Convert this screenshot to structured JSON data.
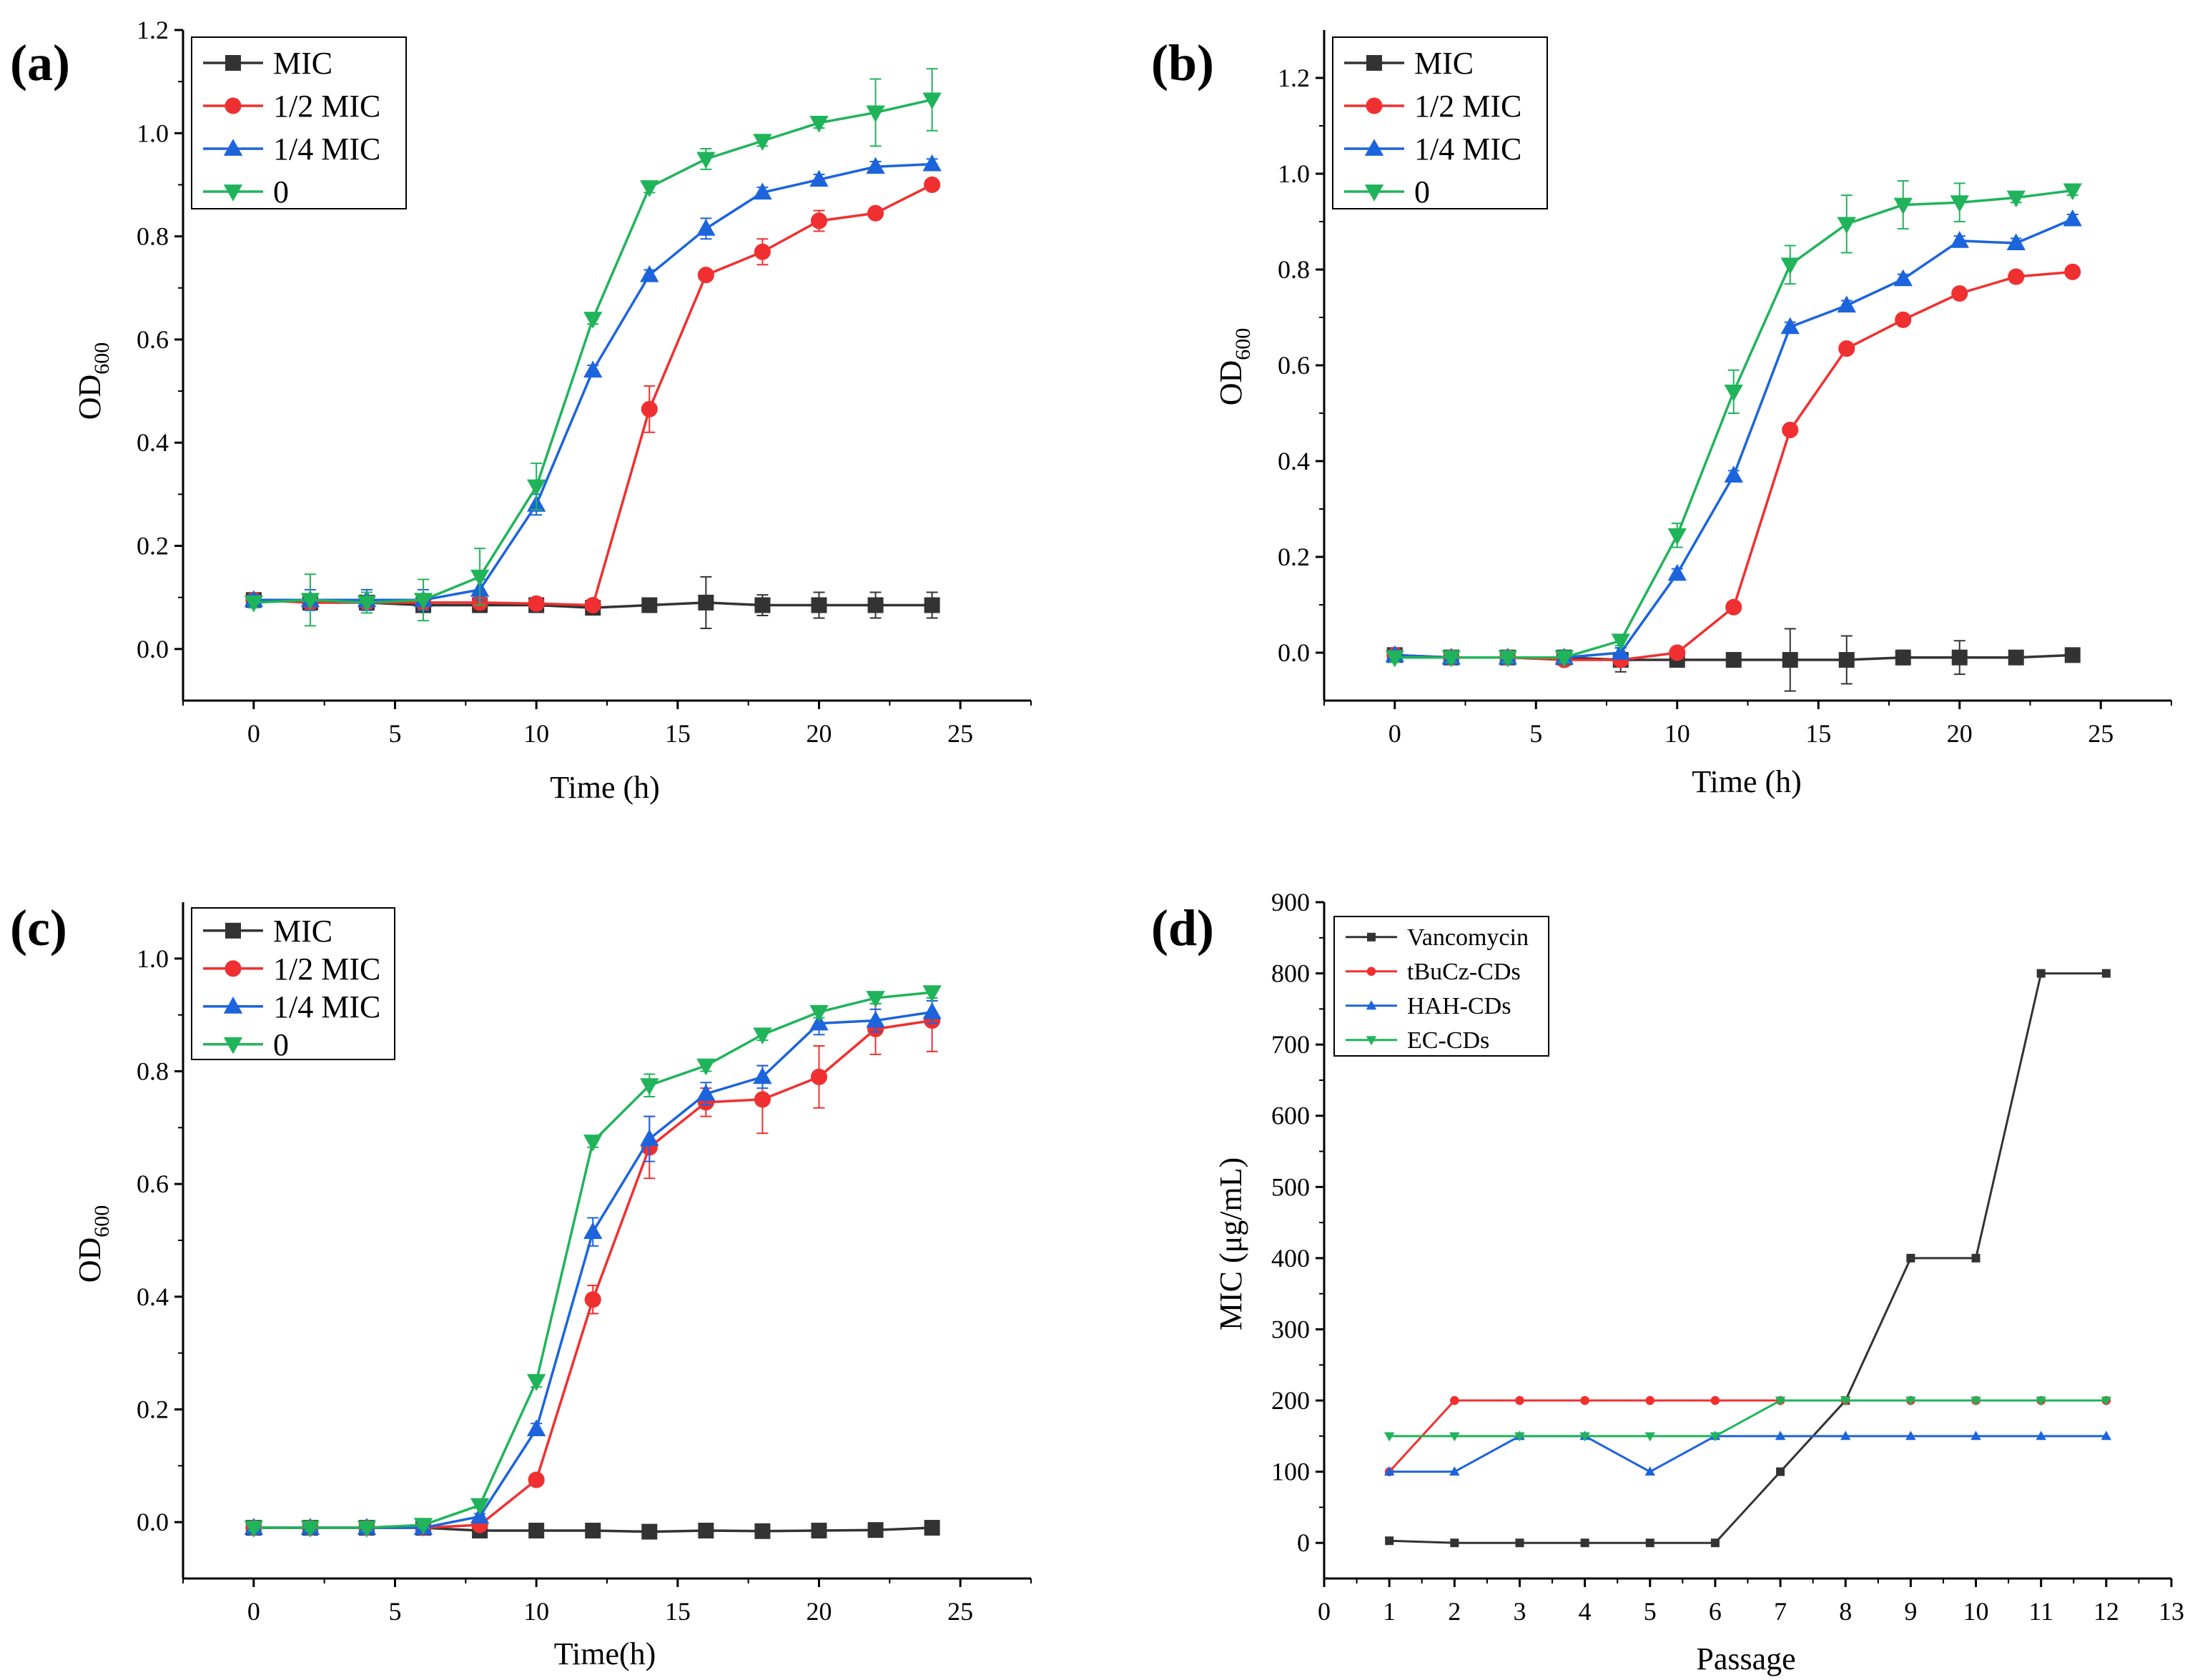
{
  "figure": {
    "colors": {
      "MIC": "#333333",
      "half_MIC": "#f03030",
      "quarter_MIC": "#1c64dc",
      "zero": "#20b45a",
      "vancomycin": "#333333",
      "tbucz": "#f03030",
      "hah": "#1c64dc",
      "ec": "#20b45a"
    },
    "markers": {
      "MIC": "square",
      "half_MIC": "circle",
      "quarter_MIC": "triangle-up",
      "zero": "triangle-down"
    }
  },
  "chart_data": [
    {
      "id": "a",
      "panel_label": "(a)",
      "type": "line",
      "xlabel": "Time (h)",
      "ylabel_main": "OD",
      "ylabel_sub": "600",
      "xlim": [
        -2.5,
        27.5
      ],
      "ylim": [
        -0.1,
        1.2
      ],
      "xticks": [
        0,
        5,
        10,
        15,
        20,
        25
      ],
      "yticks": [
        0.0,
        0.2,
        0.4,
        0.6,
        0.8,
        1.0,
        1.2
      ],
      "ytick_labels": [
        "0.0",
        "0.2",
        "0.4",
        "0.6",
        "0.8",
        "1.0",
        "1.2"
      ],
      "xtick_labels": [
        "0",
        "5",
        "10",
        "15",
        "20",
        "25"
      ],
      "legend_position": "top-left",
      "x": [
        0,
        2,
        4,
        6,
        8,
        10,
        12,
        14,
        16,
        18,
        20,
        22,
        24
      ],
      "series": [
        {
          "key": "MIC",
          "name": "MIC",
          "values": [
            0.095,
            0.09,
            0.09,
            0.085,
            0.085,
            0.085,
            0.08,
            0.085,
            0.09,
            0.085,
            0.085,
            0.085,
            0.085
          ],
          "errors": [
            0.01,
            0.01,
            0.01,
            0.01,
            0.01,
            0.01,
            0.01,
            0.01,
            0.05,
            0.02,
            0.025,
            0.025,
            0.025
          ]
        },
        {
          "key": "half_MIC",
          "name": "1/2 MIC",
          "values": [
            0.095,
            0.09,
            0.09,
            0.09,
            0.09,
            0.088,
            0.085,
            0.465,
            0.725,
            0.77,
            0.83,
            0.845,
            0.9
          ],
          "errors": [
            0.01,
            0.01,
            0.01,
            0.01,
            0.01,
            0.01,
            0.01,
            0.045,
            0.01,
            0.025,
            0.02,
            0.01,
            0.01
          ]
        },
        {
          "key": "quarter_MIC",
          "name": "1/4 MIC",
          "values": [
            0.095,
            0.095,
            0.095,
            0.095,
            0.115,
            0.28,
            0.54,
            0.725,
            0.815,
            0.885,
            0.91,
            0.935,
            0.94
          ],
          "errors": [
            0.01,
            0.02,
            0.02,
            0.02,
            0.02,
            0.02,
            0.01,
            0.01,
            0.02,
            0.01,
            0.01,
            0.01,
            0.01
          ]
        },
        {
          "key": "zero",
          "name": "0",
          "values": [
            0.09,
            0.095,
            0.09,
            0.095,
            0.14,
            0.315,
            0.64,
            0.895,
            0.95,
            0.985,
            1.02,
            1.04,
            1.065
          ],
          "errors": [
            0.01,
            0.05,
            0.02,
            0.04,
            0.055,
            0.045,
            0.01,
            0.01,
            0.02,
            0.01,
            0.01,
            0.065,
            0.06
          ]
        }
      ]
    },
    {
      "id": "b",
      "panel_label": "(b)",
      "type": "line",
      "xlabel": "Time (h)",
      "ylabel_main": "OD",
      "ylabel_sub": "600",
      "xlim": [
        -2.5,
        27.5
      ],
      "ylim": [
        -0.1,
        1.3
      ],
      "xticks": [
        0,
        5,
        10,
        15,
        20,
        25
      ],
      "yticks": [
        0.0,
        0.2,
        0.4,
        0.6,
        0.8,
        1.0,
        1.2
      ],
      "ytick_labels": [
        "0.0",
        "0.2",
        "0.4",
        "0.6",
        "0.8",
        "1.0",
        "1.2"
      ],
      "xtick_labels": [
        "0",
        "5",
        "10",
        "15",
        "20",
        "25"
      ],
      "legend_position": "top-left",
      "x": [
        0,
        2,
        4,
        6,
        8,
        10,
        12,
        14,
        16,
        18,
        20,
        22,
        24
      ],
      "series": [
        {
          "key": "MIC",
          "name": "MIC",
          "values": [
            -0.005,
            -0.01,
            -0.01,
            -0.01,
            -0.015,
            -0.015,
            -0.015,
            -0.015,
            -0.015,
            -0.01,
            -0.01,
            -0.01,
            -0.005
          ],
          "errors": [
            0.01,
            0.01,
            0.01,
            0.01,
            0.025,
            0.01,
            0.01,
            0.065,
            0.05,
            0.015,
            0.035,
            0.01,
            0.01
          ]
        },
        {
          "key": "half_MIC",
          "name": "1/2 MIC",
          "values": [
            -0.005,
            -0.01,
            -0.01,
            -0.015,
            -0.015,
            0.0,
            0.095,
            0.465,
            0.635,
            0.695,
            0.75,
            0.785,
            0.795
          ],
          "errors": [
            0.01,
            0.01,
            0.01,
            0.01,
            0.01,
            0.01,
            0.01,
            0.01,
            0.01,
            0.01,
            0.01,
            0.01,
            0.01
          ]
        },
        {
          "key": "quarter_MIC",
          "name": "1/4 MIC",
          "values": [
            -0.005,
            -0.01,
            -0.01,
            -0.01,
            0.0,
            0.165,
            0.37,
            0.68,
            0.725,
            0.78,
            0.86,
            0.855,
            0.905
          ],
          "errors": [
            0.01,
            0.01,
            0.01,
            0.01,
            0.01,
            0.01,
            0.01,
            0.01,
            0.01,
            0.01,
            0.01,
            0.01,
            0.01
          ]
        },
        {
          "key": "zero",
          "name": "0",
          "values": [
            -0.01,
            -0.01,
            -0.01,
            -0.01,
            0.025,
            0.245,
            0.545,
            0.81,
            0.895,
            0.935,
            0.94,
            0.95,
            0.965
          ],
          "errors": [
            0.01,
            0.01,
            0.01,
            0.01,
            0.01,
            0.025,
            0.045,
            0.04,
            0.06,
            0.05,
            0.04,
            0.01,
            0.01
          ]
        }
      ]
    },
    {
      "id": "c",
      "panel_label": "(c)",
      "type": "line",
      "xlabel": "Time(h)",
      "ylabel_main": "OD",
      "ylabel_sub": "600",
      "xlim": [
        -2.5,
        27.5
      ],
      "ylim": [
        -0.1,
        1.1
      ],
      "xticks": [
        0,
        5,
        10,
        15,
        20,
        25
      ],
      "yticks": [
        0.0,
        0.2,
        0.4,
        0.6,
        0.8,
        1.0
      ],
      "ytick_labels": [
        "0.0",
        "0.2",
        "0.4",
        "0.6",
        "0.8",
        "1.0"
      ],
      "xtick_labels": [
        "0",
        "5",
        "10",
        "15",
        "20",
        "25"
      ],
      "legend_position": "top-left",
      "x": [
        0,
        2,
        4,
        6,
        8,
        10,
        12,
        14,
        16,
        18,
        20,
        22,
        24
      ],
      "series": [
        {
          "key": "MIC",
          "name": "MIC",
          "values": [
            -0.01,
            -0.01,
            -0.01,
            -0.01,
            -0.015,
            -0.015,
            -0.015,
            -0.017,
            -0.015,
            -0.016,
            -0.015,
            -0.014,
            -0.01
          ],
          "errors": [
            0.005,
            0.005,
            0.005,
            0.005,
            0.005,
            0.005,
            0.005,
            0.005,
            0.005,
            0.005,
            0.005,
            0.005,
            0.005
          ]
        },
        {
          "key": "half_MIC",
          "name": "1/2 MIC",
          "values": [
            -0.01,
            -0.01,
            -0.01,
            -0.01,
            -0.005,
            0.075,
            0.395,
            0.665,
            0.745,
            0.75,
            0.79,
            0.875,
            0.89
          ],
          "errors": [
            0.005,
            0.005,
            0.005,
            0.005,
            0.005,
            0.01,
            0.025,
            0.055,
            0.025,
            0.06,
            0.055,
            0.045,
            0.055
          ]
        },
        {
          "key": "quarter_MIC",
          "name": "1/4 MIC",
          "values": [
            -0.01,
            -0.01,
            -0.01,
            -0.01,
            0.01,
            0.165,
            0.515,
            0.68,
            0.76,
            0.79,
            0.885,
            0.89,
            0.905
          ],
          "errors": [
            0.005,
            0.005,
            0.005,
            0.005,
            0.005,
            0.01,
            0.025,
            0.04,
            0.02,
            0.02,
            0.02,
            0.02,
            0.02
          ]
        },
        {
          "key": "zero",
          "name": "0",
          "values": [
            -0.01,
            -0.01,
            -0.01,
            -0.005,
            0.03,
            0.25,
            0.675,
            0.775,
            0.81,
            0.865,
            0.905,
            0.93,
            0.94
          ],
          "errors": [
            0.005,
            0.005,
            0.005,
            0.005,
            0.005,
            0.01,
            0.01,
            0.02,
            0.01,
            0.01,
            0.01,
            0.01,
            0.01
          ]
        }
      ]
    },
    {
      "id": "d",
      "panel_label": "(d)",
      "type": "line",
      "xlabel": "Passage",
      "ylabel_main": "MIC (μg/mL)",
      "ylabel_sub": "",
      "xlim": [
        0,
        13
      ],
      "ylim": [
        -50,
        900
      ],
      "xticks": [
        0,
        1,
        2,
        3,
        4,
        5,
        6,
        7,
        8,
        9,
        10,
        11,
        12,
        13
      ],
      "yticks": [
        0,
        100,
        200,
        300,
        400,
        500,
        600,
        700,
        800,
        900
      ],
      "ytick_labels": [
        "0",
        "100",
        "200",
        "300",
        "400",
        "500",
        "600",
        "700",
        "800",
        "900"
      ],
      "xtick_labels": [
        "0",
        "1",
        "2",
        "3",
        "4",
        "5",
        "6",
        "7",
        "8",
        "9",
        "10",
        "11",
        "12",
        "13"
      ],
      "legend_position": "top-left",
      "x": [
        1,
        2,
        3,
        4,
        5,
        6,
        7,
        8,
        9,
        10,
        11,
        12
      ],
      "series": [
        {
          "key": "vancomycin",
          "name": "Vancomycin",
          "values": [
            3,
            0,
            0,
            0,
            0,
            0,
            100,
            200,
            400,
            400,
            800,
            800
          ]
        },
        {
          "key": "tbucz",
          "name": "tBuCz-CDs",
          "values": [
            100,
            200,
            200,
            200,
            200,
            200,
            200,
            200,
            200,
            200,
            200,
            200
          ]
        },
        {
          "key": "hah",
          "name": "HAH-CDs",
          "values": [
            100,
            100,
            150,
            150,
            100,
            150,
            150,
            150,
            150,
            150,
            150,
            150
          ]
        },
        {
          "key": "ec",
          "name": "EC-CDs",
          "values": [
            150,
            150,
            150,
            150,
            150,
            150,
            200,
            200,
            200,
            200,
            200,
            200
          ]
        }
      ]
    }
  ]
}
